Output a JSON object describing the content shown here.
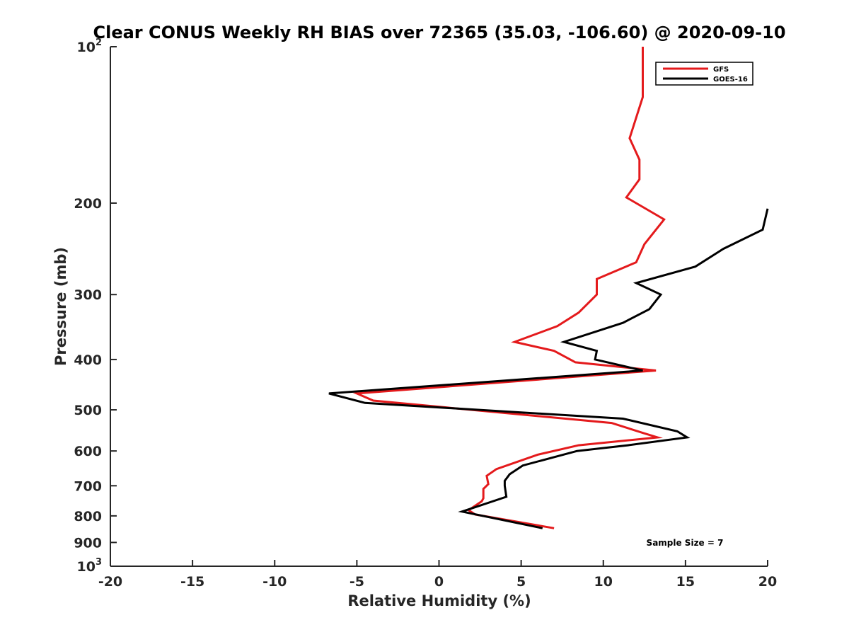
{
  "chart_data": {
    "type": "line",
    "title": "Clear CONUS Weekly RH BIAS over 72365 (35.03, -106.60) @ 2020-09-10",
    "xlabel": "Relative Humidity (%)",
    "ylabel": "Pressure (mb)",
    "xlim": [
      -20,
      20
    ],
    "ylim": [
      100,
      1000
    ],
    "y_scale": "log",
    "y_reversed": true,
    "grid": false,
    "legend_position": "top-right",
    "x_ticks": [
      "-20",
      "-15",
      "-10",
      "-5",
      "0",
      "5",
      "10",
      "15",
      "20"
    ],
    "y_ticks": [
      {
        "base": "10",
        "sup": "2",
        "value": 100
      },
      {
        "base": "200",
        "sup": "",
        "value": 200
      },
      {
        "base": "300",
        "sup": "",
        "value": 300
      },
      {
        "base": "400",
        "sup": "",
        "value": 400
      },
      {
        "base": "500",
        "sup": "",
        "value": 500
      },
      {
        "base": "600",
        "sup": "",
        "value": 600
      },
      {
        "base": "700",
        "sup": "",
        "value": 700
      },
      {
        "base": "800",
        "sup": "",
        "value": 800
      },
      {
        "base": "900",
        "sup": "",
        "value": 900
      },
      {
        "base": "10",
        "sup": "3",
        "value": 1000
      }
    ],
    "series": [
      {
        "name": "GFS",
        "color": "#e41a1c",
        "points": [
          [
            12.4,
            100
          ],
          [
            12.4,
            125
          ],
          [
            11.6,
            150
          ],
          [
            12.2,
            165
          ],
          [
            12.2,
            180
          ],
          [
            11.4,
            195
          ],
          [
            13.7,
            215
          ],
          [
            12.5,
            240
          ],
          [
            12.0,
            260
          ],
          [
            9.6,
            280
          ],
          [
            9.6,
            300
          ],
          [
            8.5,
            325
          ],
          [
            7.2,
            345
          ],
          [
            4.6,
            370
          ],
          [
            7.0,
            385
          ],
          [
            8.3,
            405
          ],
          [
            13.2,
            420
          ],
          [
            -5.0,
            465
          ],
          [
            -4.0,
            480
          ],
          [
            10.5,
            530
          ],
          [
            12.5,
            555
          ],
          [
            13.3,
            565
          ],
          [
            8.5,
            585
          ],
          [
            6.0,
            610
          ],
          [
            3.5,
            650
          ],
          [
            2.9,
            670
          ],
          [
            3.0,
            695
          ],
          [
            2.7,
            710
          ],
          [
            2.7,
            740
          ],
          [
            2.6,
            750
          ],
          [
            1.8,
            780
          ],
          [
            2.2,
            795
          ],
          [
            7.0,
            845
          ]
        ]
      },
      {
        "name": "GOES-16",
        "color": "#000000",
        "points": [
          [
            20.0,
            205
          ],
          [
            19.7,
            225
          ],
          [
            17.3,
            245
          ],
          [
            15.6,
            265
          ],
          [
            12.0,
            285
          ],
          [
            13.5,
            300
          ],
          [
            12.8,
            320
          ],
          [
            11.2,
            340
          ],
          [
            7.6,
            370
          ],
          [
            9.6,
            385
          ],
          [
            9.5,
            400
          ],
          [
            12.4,
            420
          ],
          [
            -6.7,
            465
          ],
          [
            -4.5,
            485
          ],
          [
            11.2,
            520
          ],
          [
            14.5,
            550
          ],
          [
            15.1,
            565
          ],
          [
            11.5,
            585
          ],
          [
            8.4,
            600
          ],
          [
            5.1,
            640
          ],
          [
            4.3,
            665
          ],
          [
            4.0,
            685
          ],
          [
            4.0,
            700
          ],
          [
            4.1,
            735
          ],
          [
            1.4,
            785
          ],
          [
            6.3,
            845
          ]
        ]
      }
    ],
    "annotations": [
      "Sample Size = 7"
    ]
  }
}
